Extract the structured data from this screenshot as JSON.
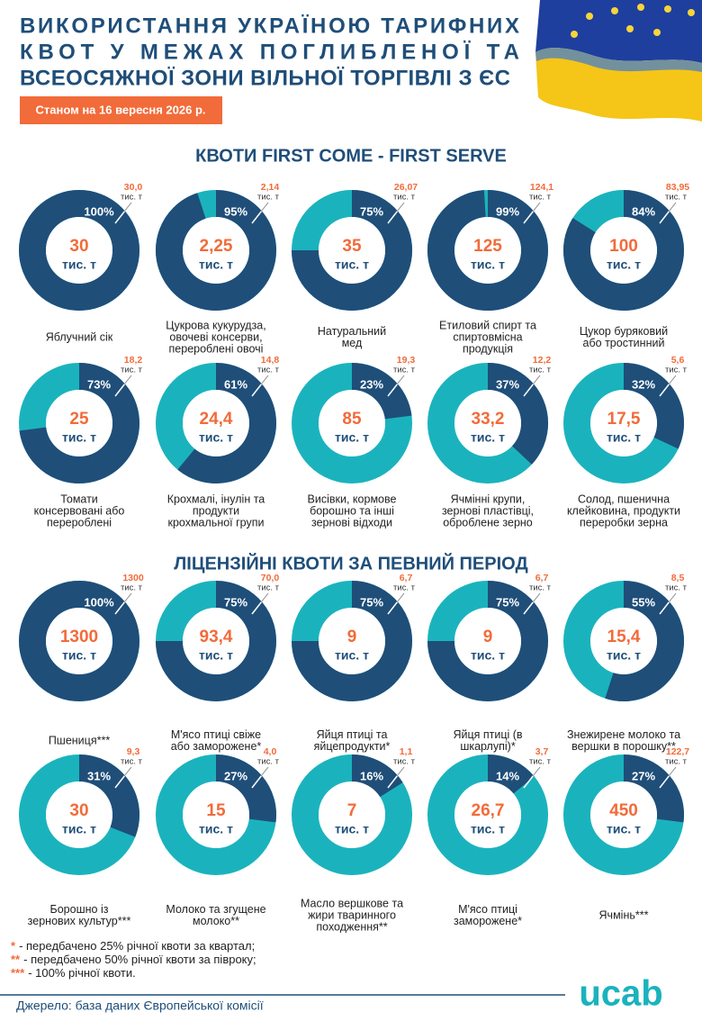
{
  "header": {
    "title": [
      "ВИКОРИСТАННЯ УКРАЇНОЮ ТАРИФНИХ",
      "КВОТ У МЕЖАХ ПОГЛИБЛЕНОЇ ТА",
      "ВСЕОСЯЖНОЇ ЗОНИ ВІЛЬНОЇ ТОРГІВЛІ З ЄС"
    ],
    "date": "Станом на 16 вересня 2026 р."
  },
  "unit": "тис. т",
  "sections": [
    {
      "title": "КВОТИ FIRST COME - FIRST SERVE",
      "quotas": [
        {
          "total": "30",
          "percent": 100,
          "percent_label": "100%",
          "used": "30,0",
          "label": [
            "Яблучний сік"
          ]
        },
        {
          "total": "2,25",
          "percent": 95,
          "percent_label": "95%",
          "used": "2,14",
          "label": [
            "Цукрова кукурудза,",
            "овочеві консерви,",
            "перероблені овочі"
          ]
        },
        {
          "total": "35",
          "percent": 75,
          "percent_label": "75%",
          "used": "26,07",
          "label": [
            "Натуральний",
            "мед"
          ]
        },
        {
          "total": "125",
          "percent": 99,
          "percent_label": "99%",
          "used": "124,1",
          "label": [
            "Етиловий спирт та",
            "спиртовмісна",
            "продукція"
          ]
        },
        {
          "total": "100",
          "percent": 84,
          "percent_label": "84%",
          "used": "83,95",
          "label": [
            "Цукор буряковий",
            "або тростинний"
          ]
        },
        {
          "total": "25",
          "percent": 73,
          "percent_label": "73%",
          "used": "18,2",
          "label": [
            "Томати",
            "консервовані або",
            "перероблені"
          ]
        },
        {
          "total": "24,4",
          "percent": 61,
          "percent_label": "61%",
          "used": "14,8",
          "label": [
            "Крохмалі, інулін та",
            "продукти",
            "крохмальної групи"
          ]
        },
        {
          "total": "85",
          "percent": 23,
          "percent_label": "23%",
          "used": "19,3",
          "label": [
            "Висівки, кормове",
            "борошно та інші",
            "зернові відходи"
          ]
        },
        {
          "total": "33,2",
          "percent": 37,
          "percent_label": "37%",
          "used": "12,2",
          "label": [
            "Ячмінні крупи,",
            "зернові пластівці,",
            "оброблене зерно"
          ]
        },
        {
          "total": "17,5",
          "percent": 32,
          "percent_label": "32%",
          "used": "5,6",
          "label": [
            "Солод, пшенична",
            "клейковина, продукти",
            "переробки зерна"
          ]
        }
      ]
    },
    {
      "title": "ЛІЦЕНЗІЙНІ КВОТИ ЗА ПЕВНИЙ ПЕРІОД",
      "quotas": [
        {
          "total": "1300",
          "percent": 100,
          "percent_label": "100%",
          "used": "1300",
          "label": [
            "Пшениця***"
          ]
        },
        {
          "total": "93,4",
          "percent": 75,
          "percent_label": "75%",
          "used": "70,0",
          "label": [
            "М'ясо птиці свіже",
            "або заморожене*"
          ]
        },
        {
          "total": "9",
          "percent": 75,
          "percent_label": "75%",
          "used": "6,7",
          "label": [
            "Яйця птиці та",
            "яйцепродукти*"
          ]
        },
        {
          "total": "9",
          "percent": 75,
          "percent_label": "75%",
          "used": "6,7",
          "label": [
            "Яйця птиці (в",
            "шкарлупі)*"
          ]
        },
        {
          "total": "15,4",
          "percent": 55,
          "percent_label": "55%",
          "used": "8,5",
          "label": [
            "Знежирене молоко та",
            "вершки в порошку**"
          ]
        },
        {
          "total": "30",
          "percent": 31,
          "percent_label": "31%",
          "used": "9,3",
          "label": [
            "Борошно із",
            "зернових культур***"
          ]
        },
        {
          "total": "15",
          "percent": 27,
          "percent_label": "27%",
          "used": "4,0",
          "label": [
            "Молоко та згущене",
            "молоко**"
          ]
        },
        {
          "total": "7",
          "percent": 16,
          "percent_label": "16%",
          "used": "1,1",
          "label": [
            "Масло вершкове та",
            "жири тваринного",
            "походження**"
          ]
        },
        {
          "total": "26,7",
          "percent": 14,
          "percent_label": "14%",
          "used": "3,7",
          "label": [
            "М'ясо птиці",
            "заморожене*"
          ]
        },
        {
          "total": "450",
          "percent": 27,
          "percent_label": "27%",
          "used": "122,7",
          "label": [
            "Ячмінь***"
          ]
        }
      ]
    }
  ],
  "footnotes": [
    {
      "mark": "*",
      "text": "- передбачено 25% річної квоти за квартал;"
    },
    {
      "mark": "**",
      "text": "- передбачено 50% річної квоти за півроку;"
    },
    {
      "mark": "***",
      "text": "- 100% річної квоти."
    }
  ],
  "source": "Джерело: база даних Європейської комісії",
  "logo": "ucab"
}
